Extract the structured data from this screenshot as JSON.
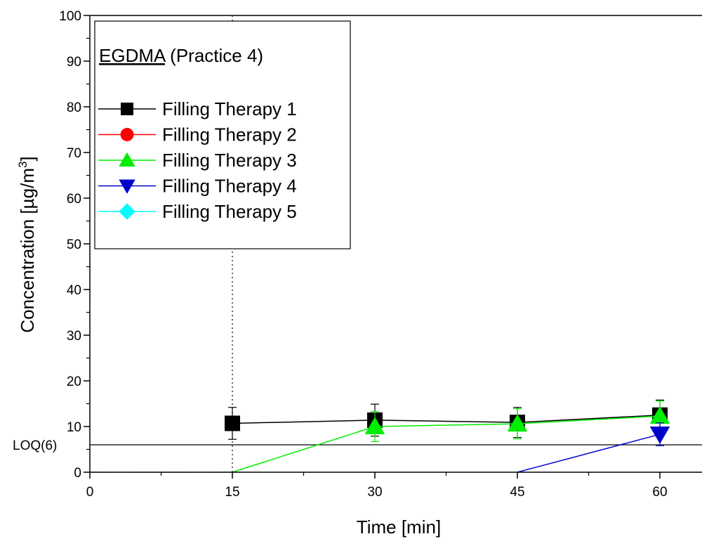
{
  "chart_data": {
    "type": "line",
    "title": "EGDMA",
    "subtitle": "(Practice 4)",
    "xlabel": "Time [min]",
    "ylabel": "Concentration [µg/m",
    "ylabel_sup": "3",
    "ylabel_end": "]",
    "xlim": [
      0,
      65
    ],
    "ylim": [
      0,
      100
    ],
    "xticks": [
      0,
      15,
      30,
      45,
      60
    ],
    "yticks": [
      0,
      10,
      20,
      30,
      40,
      50,
      60,
      70,
      80,
      90,
      100
    ],
    "grid": false,
    "legend_position": "top-left",
    "reference_lines": [
      {
        "orientation": "horizontal",
        "value": 6,
        "label": "LOQ(6)",
        "style": "solid"
      },
      {
        "orientation": "vertical",
        "value": 15,
        "style": "dotted"
      },
      {
        "orientation": "horizontal",
        "value": 0,
        "style": "dotted",
        "x_range": [
          0,
          15
        ]
      }
    ],
    "series": [
      {
        "name": "Filling Therapy 1",
        "color": "#000000",
        "marker": "square",
        "x": [
          15,
          30,
          45,
          60
        ],
        "y": [
          10.7,
          11.4,
          10.9,
          12.5
        ],
        "error": [
          3.5,
          3.5,
          3.3,
          3.3
        ]
      },
      {
        "name": "Filling Therapy 2",
        "color": "#ff0000",
        "marker": "circle",
        "x": [],
        "y": [],
        "error": []
      },
      {
        "name": "Filling Therapy 3",
        "color": "#00ee00",
        "marker": "triangle-up",
        "x": [
          15,
          30,
          45,
          60
        ],
        "y": [
          0,
          10.0,
          10.6,
          12.3
        ],
        "error": [
          0,
          3.3,
          3.3,
          3.3
        ]
      },
      {
        "name": "Filling Therapy 4",
        "color": "#0000cc",
        "marker": "triangle-down",
        "x": [
          45,
          60
        ],
        "y": [
          0,
          8.3
        ],
        "error": [
          0,
          2.5
        ]
      },
      {
        "name": "Filling Therapy 5",
        "color": "#00ffff",
        "marker": "diamond",
        "x": [],
        "y": [],
        "error": []
      }
    ]
  }
}
